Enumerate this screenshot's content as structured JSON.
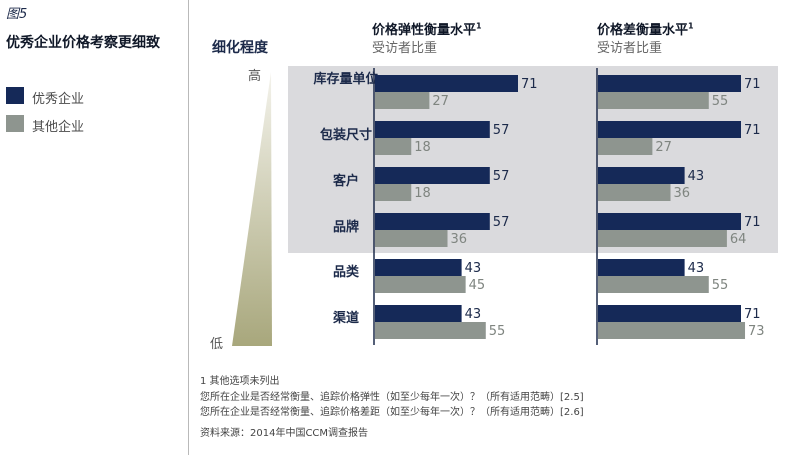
{
  "figure_label": "图5",
  "title": "优秀企业价格考察更细致",
  "legend": [
    {
      "label": "优秀企业",
      "color": "#152958"
    },
    {
      "label": "其他企业",
      "color": "#8e958f"
    }
  ],
  "detail_axis": {
    "title": "细化程度",
    "high_label": "高",
    "low_label": "低"
  },
  "highlight_color": "#dadadd",
  "footnotes": {
    "note1": "1 其他选项未列出",
    "q1": "您所在企业是否经常衡量、追踪价格弹性（如至少每年一次）？（所有适用范畴）[2.5]",
    "q2": "您所在企业是否经常衡量、追踪价格差距（如至少每年一次）？（所有适用范畴）[2.6]",
    "source": "资料来源：2014年中国CCM调查报告"
  },
  "chart_data": [
    {
      "type": "bar",
      "orientation": "horizontal",
      "title": "价格弹性衡量水平",
      "title_sup": "1",
      "subtitle": "受访者比重",
      "categories": [
        "库存量单位",
        "包装尺寸",
        "客户",
        "品牌",
        "品类",
        "渠道"
      ],
      "highlighted_categories": [
        "库存量单位",
        "包装尺寸",
        "客户",
        "品牌"
      ],
      "series": [
        {
          "name": "优秀企业",
          "values": [
            71,
            57,
            57,
            57,
            43,
            43
          ]
        },
        {
          "name": "其他企业",
          "values": [
            27,
            18,
            18,
            36,
            45,
            55
          ]
        }
      ],
      "xlim": [
        0,
        100
      ],
      "grid": false
    },
    {
      "type": "bar",
      "orientation": "horizontal",
      "title": "价格差衡量水平",
      "title_sup": "1",
      "subtitle": "受访者比重",
      "categories": [
        "库存量单位",
        "包装尺寸",
        "客户",
        "品牌",
        "品类",
        "渠道"
      ],
      "highlighted_categories": [
        "库存量单位",
        "包装尺寸",
        "客户",
        "品牌"
      ],
      "series": [
        {
          "name": "优秀企业",
          "values": [
            71,
            71,
            43,
            71,
            43,
            71
          ]
        },
        {
          "name": "其他企业",
          "values": [
            55,
            27,
            36,
            64,
            55,
            73
          ]
        }
      ],
      "xlim": [
        0,
        100
      ],
      "grid": false
    }
  ]
}
